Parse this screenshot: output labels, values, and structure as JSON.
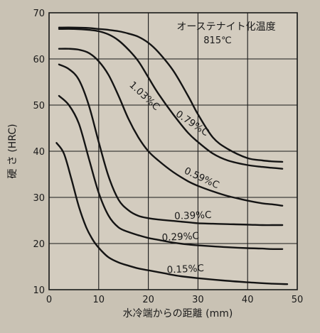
{
  "chart_data": {
    "type": "line",
    "annotation_title": "オーステナイト化温度",
    "annotation_sub": "815℃",
    "xlabel": "水冷端からの距離 (mm)",
    "ylabel": "硬 さ (HRC)",
    "xlim": [
      0,
      50
    ],
    "ylim": [
      10,
      70
    ],
    "xticks": [
      0,
      10,
      20,
      30,
      40,
      50
    ],
    "yticks": [
      10,
      20,
      30,
      40,
      50,
      60,
      70
    ],
    "grid": true,
    "series": [
      {
        "name": "1.03%C",
        "x": [
          2,
          5,
          8,
          10,
          12,
          14,
          16,
          18,
          20,
          22,
          25,
          28,
          30,
          33,
          36,
          40,
          43,
          45,
          47
        ],
        "y": [
          66.8,
          66.8,
          66.7,
          66.5,
          66.3,
          66,
          65.5,
          64.8,
          63.5,
          61.5,
          57.5,
          52,
          48,
          43,
          40.5,
          38.5,
          38,
          37.8,
          37.7
        ]
      },
      {
        "name": "0.79%C",
        "x": [
          2,
          5,
          8,
          10,
          12,
          14,
          16,
          18,
          20,
          22,
          25,
          28,
          30,
          33,
          36,
          40,
          43,
          45,
          47
        ],
        "y": [
          66.5,
          66.5,
          66.3,
          66,
          65.3,
          64,
          62,
          59.5,
          56,
          52.5,
          48,
          44,
          42,
          39.5,
          38,
          37,
          36.6,
          36.4,
          36.2
        ]
      },
      {
        "name": "0.59%C",
        "x": [
          2,
          4,
          6,
          8,
          10,
          12,
          14,
          16,
          18,
          20,
          22,
          25,
          28,
          30,
          33,
          36,
          40,
          43,
          45,
          47
        ],
        "y": [
          62.2,
          62.2,
          62,
          61.3,
          59.5,
          56.5,
          52,
          47,
          43,
          40,
          38,
          35.5,
          33.5,
          32.5,
          31.3,
          30.3,
          29.3,
          28.7,
          28.5,
          28.2
        ]
      },
      {
        "name": "0.39%C",
        "x": [
          2,
          4,
          6,
          8,
          10,
          12,
          14,
          16,
          18,
          20,
          22,
          25,
          28,
          30,
          33,
          36,
          40,
          43,
          45,
          47
        ],
        "y": [
          58.8,
          57.8,
          55.5,
          50,
          42,
          34.5,
          29.5,
          27.2,
          26,
          25.5,
          25.2,
          24.9,
          24.6,
          24.4,
          24.3,
          24.2,
          24.1,
          24,
          24,
          24
        ]
      },
      {
        "name": "0.29%C",
        "x": [
          2,
          4,
          6,
          8,
          10,
          12,
          14,
          16,
          18,
          20,
          22,
          25,
          28,
          30,
          33,
          36,
          40,
          43,
          45,
          47
        ],
        "y": [
          52,
          50,
          46,
          38.5,
          31,
          26,
          23.5,
          22.5,
          21.8,
          21.2,
          20.8,
          20.2,
          19.8,
          19.6,
          19.4,
          19.2,
          19,
          18.9,
          18.8,
          18.8
        ]
      },
      {
        "name": "0.15%C",
        "x": [
          1.5,
          3,
          4.5,
          6,
          7.5,
          9,
          10.5,
          12,
          14,
          16,
          18,
          20,
          23,
          26,
          30,
          35,
          40,
          45,
          48
        ],
        "y": [
          41.8,
          39.5,
          34,
          28,
          23.5,
          20.5,
          18.5,
          17,
          15.9,
          15.2,
          14.6,
          14.2,
          13.6,
          13,
          12.5,
          12,
          11.6,
          11.3,
          11.2
        ]
      }
    ],
    "labels": [
      {
        "text": "1.03%C"
      },
      {
        "text": "0.79%C"
      },
      {
        "text": "0.59%C"
      },
      {
        "text": "0.39%C"
      },
      {
        "text": "0.29%C"
      },
      {
        "text": "0.15%C"
      }
    ]
  }
}
